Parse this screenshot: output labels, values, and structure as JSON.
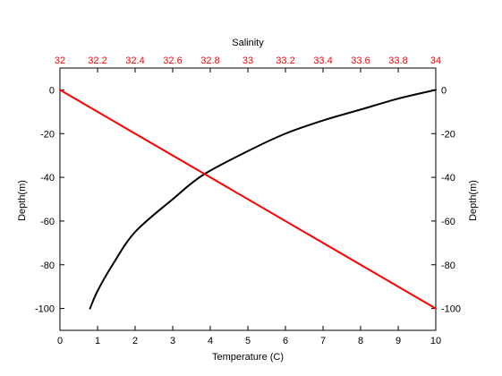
{
  "chart_data": {
    "type": "line",
    "x_axis_bottom": {
      "label": "Temperature (C)",
      "range": [
        0,
        10
      ],
      "ticks": [
        "0",
        "1",
        "2",
        "3",
        "4",
        "5",
        "6",
        "7",
        "8",
        "9",
        "10"
      ]
    },
    "x_axis_top": {
      "label": "Salinity",
      "range": [
        32,
        34
      ],
      "ticks": [
        "32",
        "32.2",
        "32.4",
        "32.6",
        "32.8",
        "33",
        "33.2",
        "33.4",
        "33.6",
        "33.8",
        "34"
      ],
      "color": "#ff0000"
    },
    "y_axis_left": {
      "label": "Depth(m)",
      "range": [
        -110,
        10
      ],
      "ticks": [
        "0",
        "-20",
        "-40",
        "-60",
        "-80",
        "-100"
      ]
    },
    "y_axis_right": {
      "label": "Depth(m)",
      "ticks": [
        "0",
        "-20",
        "-40",
        "-60",
        "-80",
        "-100"
      ]
    },
    "series": [
      {
        "axis": "temperature",
        "color": "#000000",
        "points": [
          {
            "x": 0.8,
            "y": -100
          },
          {
            "x": 1.0,
            "y": -92
          },
          {
            "x": 1.4,
            "y": -80
          },
          {
            "x": 2.0,
            "y": -65
          },
          {
            "x": 3.0,
            "y": -50
          },
          {
            "x": 3.8,
            "y": -39
          },
          {
            "x": 5.0,
            "y": -28
          },
          {
            "x": 6.0,
            "y": -20
          },
          {
            "x": 7.0,
            "y": -14
          },
          {
            "x": 8.0,
            "y": -9
          },
          {
            "x": 9.0,
            "y": -4
          },
          {
            "x": 10.0,
            "y": 0
          }
        ]
      },
      {
        "axis": "salinity",
        "color": "#ff0000",
        "points": [
          {
            "x": 32,
            "y": 0
          },
          {
            "x": 34,
            "y": -100
          }
        ]
      }
    ],
    "grid": false,
    "legend": "none"
  }
}
